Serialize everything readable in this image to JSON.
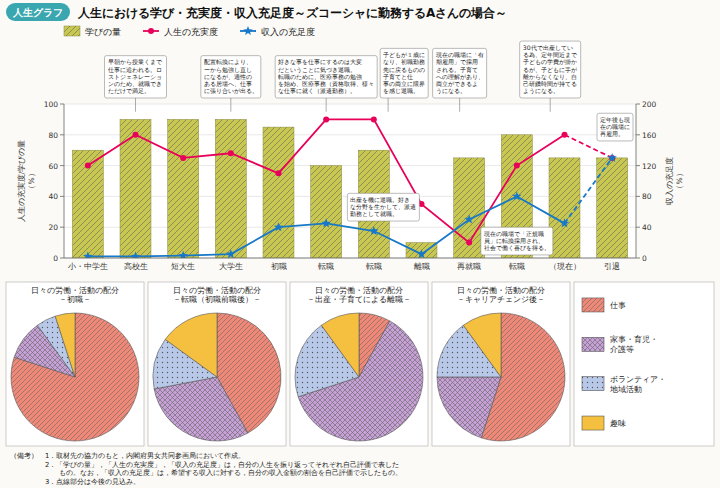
{
  "chart_data": [
    {
      "type": "bar",
      "title": "人生における学び・充実度・収入充足度～ズコーシャに勤務するAさんの場合～",
      "subtitle": "人生グラフ",
      "categories": [
        "小・中学生",
        "高校生",
        "短大生",
        "大学生",
        "初職",
        "転職",
        "転職",
        "離職",
        "再就職",
        "転職",
        "（現在）",
        "引退"
      ],
      "series": [
        {
          "name": "学びの量",
          "type": "bar",
          "color": "#c8c850",
          "values": [
            70,
            90,
            90,
            90,
            85,
            60,
            70,
            10,
            65,
            80,
            65,
            65
          ]
        },
        {
          "name": "人生の充実度",
          "type": "line",
          "color": "#e8005a",
          "marker": "circle",
          "line_style": "solid",
          "dashed_from": 10,
          "values": [
            60,
            80,
            65,
            68,
            55,
            90,
            90,
            35,
            10,
            60,
            80,
            65
          ]
        },
        {
          "name": "収入の充足度",
          "type": "line",
          "axis": "y2",
          "color": "#1878c8",
          "marker": "star",
          "line_style": "solid",
          "dashed_from": 10,
          "values": [
            2,
            2,
            3,
            5,
            40,
            45,
            35,
            5,
            50,
            80,
            45,
            130
          ]
        }
      ],
      "ylabel": "人生の充実度/学びの量\n（%）",
      "y2label": "収入の充足度\n（%）",
      "ylim": [
        0,
        100
      ],
      "yticks": [
        0,
        20,
        40,
        60,
        80,
        100
      ],
      "y2lim": [
        0,
        200
      ],
      "y2ticks": [
        0,
        40,
        80,
        120,
        160,
        200
      ],
      "grid": true,
      "legend": "top",
      "annotations": [
        {
          "text": "早朝から授業くまで\n仕事に追われる。ロ\nストジェネレーショ\nンのため、就職でき\nただけで満足。",
          "x": 1.0,
          "y": 95
        },
        {
          "text": "配置転換により、\nーから勉強し直し\nになるが、適性の\nある居場へ、仕事\nに張り合いが出る。",
          "x": 3.0,
          "y": 95
        },
        {
          "text": "好きな事を仕事にするのは大変\nだということに気づき退職。\n転職のために、医療事務の勉強\nを始め、医療事務（資格取得、様々\nな仕事に就く（派遣勤務）。",
          "x": 5.0,
          "y": 95
        },
        {
          "text": "子どもが１歳に\nなり、初職勤務\n先に戻るものの\n子育てと仕\n事の両立に限界\nを感じ退職。",
          "x": 6.3,
          "y": 95
        },
        {
          "text": "現在の職場に「有\n期雇用」で採用\nされる。子育て\nへの理解があり、\n両立ができるよ\nうになる。",
          "x": 7.8,
          "y": 95
        },
        {
          "text": "30代で出産してい\nる為、定年間近まで\n子どもの学費が掛か\nるが、子どもに手が\n離からなくなり、自\n己研鑽時間が持てる\nようになる。",
          "x": 9.7,
          "y": 95
        },
        {
          "text": "出産を機に退職。好き\nな分野を生かして、派遣\n勤務として就職。",
          "x": 6.2,
          "y": 42
        },
        {
          "text": "現在の職場で「正規職\n員」に転換採用され、\n社会で働く喜びを得る。",
          "x": 9.0,
          "y": 20
        },
        {
          "text": "定年後も現\n在の職場に\n再雇用。",
          "x": 11.2,
          "y": 85
        }
      ],
      "notes": [
        "（備考）　1．取材先の協力のもと，内閣府男女共同参画局において作成。",
        "　　　　　2．「学びの量」，「人生の充実度」，「収入の充足度」は，自分の人生を振り返ってそれぞれ自己評価で表した",
        "　　　　　　　もの。なお，「収入の充足度」は，希望する収入に対する，自分の収入金額の割合を自己評価で示したもの。",
        "　　　　　3．点線部分は今後の見込み。"
      ]
    },
    {
      "type": "pie",
      "categories": [
        "仕事",
        "家事・育児・\n介護等",
        "ボランティア・\n地域活動",
        "趣味"
      ],
      "colors": [
        "#f08878",
        "#c8a0d8",
        "#b8c8e8",
        "#f5c040"
      ],
      "legend": "right",
      "series": [
        {
          "name": "日々の労働・活動の配分\n－初職－",
          "values": [
            80,
            10,
            5,
            5
          ]
        },
        {
          "name": "日々の労働・活動の配分\n－転職（初職前職後）－",
          "values": [
            42,
            30,
            13,
            15
          ]
        },
        {
          "name": "日々の労働・活動の配分\n－出産・子育てによる離職－",
          "values": [
            8,
            62,
            20,
            10
          ]
        },
        {
          "name": "日々の労働・活動の配分\n－キャリアチェンジ後－",
          "values": [
            55,
            20,
            15,
            10
          ]
        }
      ]
    }
  ]
}
